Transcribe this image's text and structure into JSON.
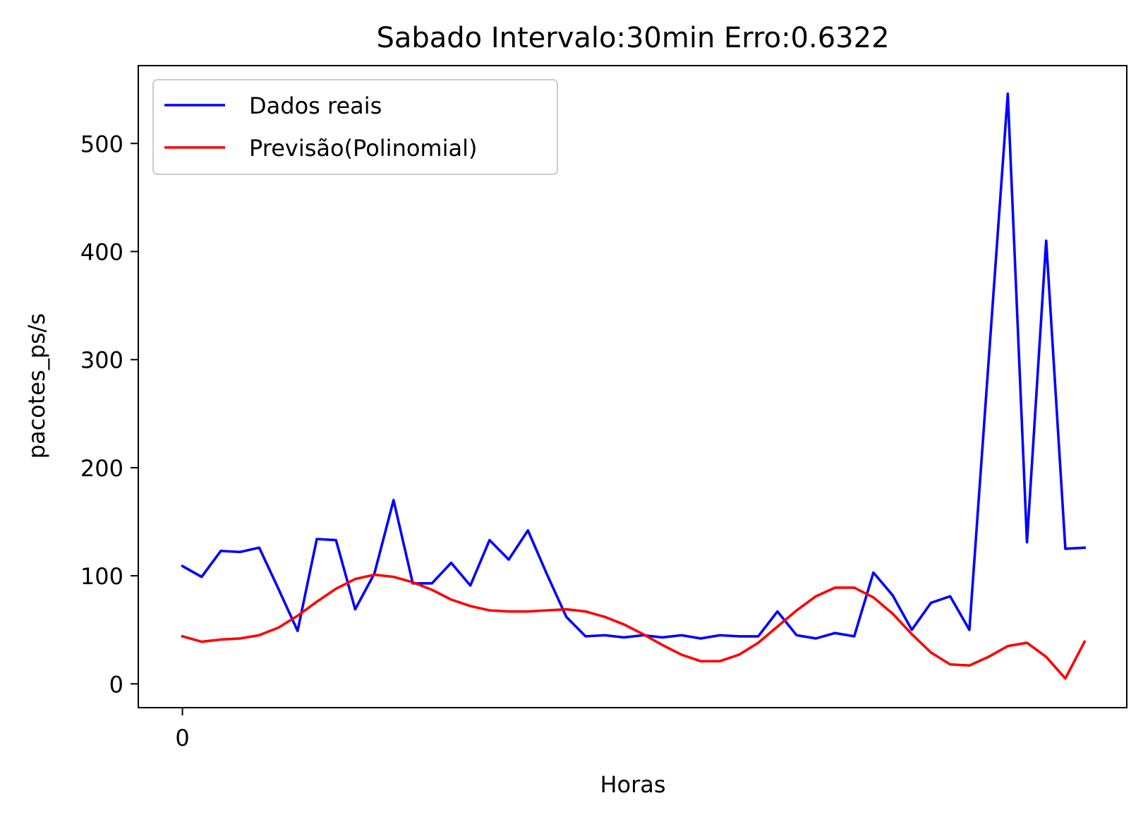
{
  "chart_data": {
    "type": "line",
    "title": "Sabado Intervalo:30min Erro:0.6322",
    "xlabel": "Horas",
    "ylabel": "pacotes_ps/s",
    "x_ticks": [
      0
    ],
    "y_ticks": [
      0,
      100,
      200,
      300,
      400,
      500
    ],
    "xlim": [
      -2.3,
      49.2
    ],
    "ylim": [
      -22,
      572
    ],
    "grid": false,
    "legend_position": "top-left",
    "x": [
      0,
      1,
      2,
      3,
      4,
      5,
      6,
      7,
      8,
      9,
      10,
      11,
      12,
      13,
      14,
      15,
      16,
      17,
      18,
      19,
      20,
      21,
      22,
      23,
      24,
      25,
      26,
      27,
      28,
      29,
      30,
      31,
      32,
      33,
      34,
      35,
      36,
      37,
      38,
      39,
      40,
      41,
      42,
      43,
      44,
      45,
      46,
      47
    ],
    "series": [
      {
        "name": "Dados reais",
        "color": "#0000ff",
        "values": [
          109,
          99,
          123,
          122,
          126,
          88,
          49,
          134,
          133,
          69,
          102,
          170,
          93,
          93,
          112,
          91,
          133,
          115,
          142,
          101,
          62,
          44,
          45,
          43,
          45,
          43,
          45,
          42,
          45,
          44,
          44,
          67,
          45,
          42,
          47,
          44,
          103,
          82,
          50,
          75,
          81,
          50,
          298,
          546,
          131,
          410,
          125,
          126
        ]
      },
      {
        "name": "Previsão(Polinomial)",
        "color": "#ff0000",
        "values": [
          44,
          39,
          41,
          42,
          45,
          52,
          63,
          76,
          88,
          97,
          101,
          99,
          94,
          87,
          78,
          72,
          68,
          67,
          67,
          68,
          69,
          67,
          62,
          55,
          46,
          36,
          27,
          21,
          21,
          27,
          38,
          53,
          68,
          81,
          89,
          89,
          80,
          65,
          46,
          29,
          18,
          17,
          25,
          35,
          38,
          25,
          5,
          39
        ]
      }
    ]
  }
}
